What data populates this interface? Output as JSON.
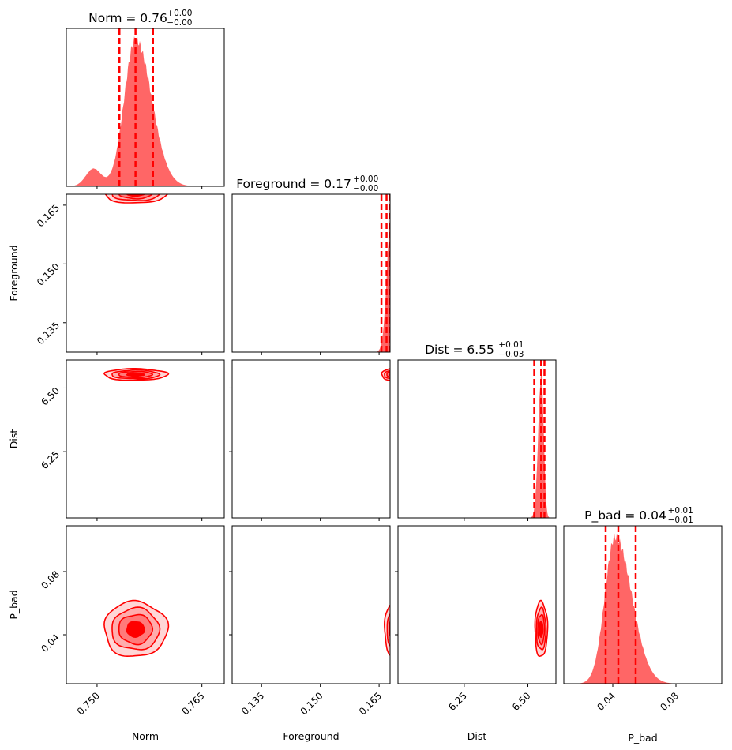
{
  "chart_data": {
    "type": "corner",
    "color": "#ff0000",
    "parameters": [
      {
        "key": "norm",
        "label": "Norm",
        "title_name": "Norm",
        "value": "0.76",
        "plus": "+0.00",
        "minus": "−0.00",
        "range": [
          0.7456,
          0.7682
        ],
        "ticks": [
          0.75,
          0.765
        ],
        "tick_labels": [
          "0.750",
          "0.765"
        ],
        "median": 0.7555,
        "q16": 0.7532,
        "q84": 0.758
      },
      {
        "key": "foreground",
        "label": "Foreground",
        "title_name": "Foreground",
        "value": "0.17",
        "plus": "+0.00",
        "minus": "−0.00",
        "range": [
          0.1275,
          0.1678
        ],
        "ticks": [
          0.135,
          0.15,
          0.165
        ],
        "tick_labels": [
          "0.135",
          "0.150",
          "0.165"
        ],
        "median": 0.1669,
        "q16": 0.1656,
        "q84": 0.1677
      },
      {
        "key": "dist",
        "label": "Dist",
        "title_name": "Dist",
        "value": "6.55",
        "plus": "+0.01",
        "minus": "−0.03",
        "range": [
          5.99,
          6.61
        ],
        "ticks": [
          6.25,
          6.5
        ],
        "tick_labels": [
          "6.25",
          "6.50"
        ],
        "median": 6.552,
        "q16": 6.525,
        "q84": 6.565
      },
      {
        "key": "p_bad",
        "label": "P_bad",
        "title_name": "P_bad",
        "value": "0.04",
        "plus": "+0.01",
        "minus": "−0.01",
        "range": [
          0.009,
          0.109
        ],
        "ticks": [
          0.04,
          0.08
        ],
        "tick_labels": [
          "0.04",
          "0.08"
        ],
        "median": 0.0435,
        "q16": 0.0355,
        "q84": 0.0545
      }
    ],
    "marginals": {
      "norm": {
        "peak": 0.7555,
        "sigma_left": 0.0016,
        "sigma_right": 0.0023,
        "shoulder": [
          0.7495,
          0.0011,
          0.12
        ]
      },
      "foreground": {
        "peak": 0.1682,
        "sigma_left": 0.0011,
        "sigma_right": 0.002
      },
      "dist": {
        "peak": 6.553,
        "sigma_left": 0.012,
        "sigma_right": 0.009
      },
      "p_bad": {
        "peak": 0.0415,
        "sigma_left": 0.0065,
        "sigma_right": 0.0105
      }
    },
    "joint": [
      {
        "x": "norm",
        "y": "foreground",
        "cx": 0.7555,
        "cy": 0.168,
        "sx": 0.0022,
        "sy": 0.0012
      },
      {
        "x": "norm",
        "y": "dist",
        "cx": 0.7555,
        "cy": 6.553,
        "sx": 0.0022,
        "sy": 0.011
      },
      {
        "x": "foreground",
        "y": "dist",
        "cx": 0.1685,
        "cy": 6.553,
        "sx": 0.0014,
        "sy": 0.011
      },
      {
        "x": "norm",
        "y": "p_bad",
        "cx": 0.7555,
        "cy": 0.0435,
        "sx": 0.0022,
        "sy": 0.0085
      },
      {
        "x": "foreground",
        "y": "p_bad",
        "cx": 0.1692,
        "cy": 0.0435,
        "sx": 0.0014,
        "sy": 0.0085
      },
      {
        "x": "dist",
        "y": "p_bad",
        "cx": 6.552,
        "cy": 0.0435,
        "sx": 0.012,
        "sy": 0.0085
      }
    ],
    "contour_levels": [
      0.12,
      0.3,
      0.55,
      0.85
    ],
    "fill_opacity": 0.6
  }
}
